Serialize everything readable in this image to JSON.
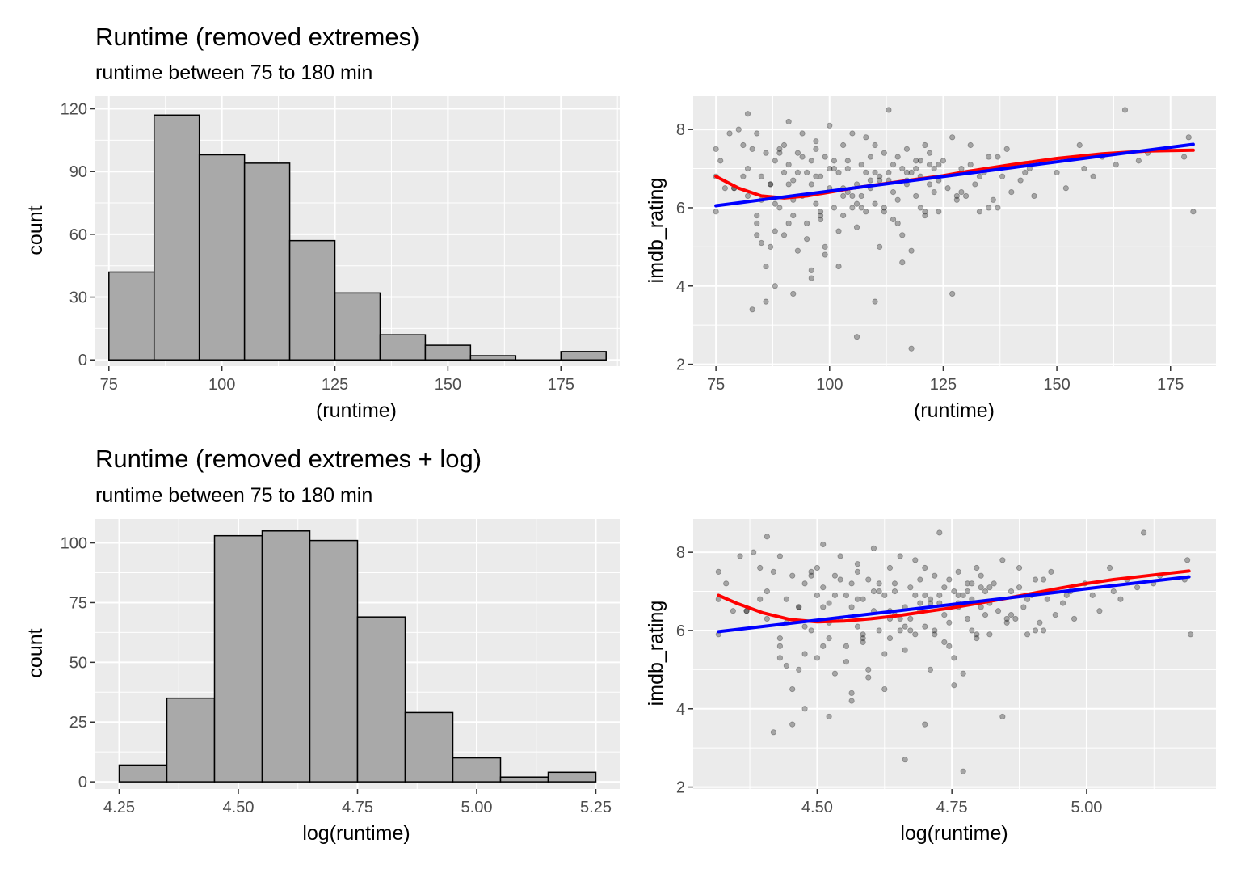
{
  "chart_data": [
    {
      "type": "bar",
      "title": "Runtime (removed extremes)",
      "subtitle": "runtime between 75 to 180 min",
      "xlabel": "(runtime)",
      "ylabel": "count",
      "xlim": [
        72,
        188
      ],
      "ylim": [
        -3,
        126
      ],
      "xticks": [
        75,
        100,
        125,
        150,
        175
      ],
      "xtick_labels": [
        "75",
        "100",
        "125",
        "150",
        "175"
      ],
      "yticks": [
        0,
        30,
        60,
        90,
        120
      ],
      "ytick_labels": [
        "0",
        "30",
        "60",
        "90",
        "120"
      ],
      "bin_edges": [
        75,
        85,
        95,
        105,
        115,
        125,
        135,
        145,
        155,
        165,
        175,
        185
      ],
      "values": [
        42,
        117,
        98,
        94,
        57,
        32,
        12,
        7,
        2,
        0,
        4
      ],
      "fill_color": "#a9a9a9",
      "grid": true
    },
    {
      "type": "scatter",
      "xlabel": "(runtime)",
      "ylabel": "imdb_rating",
      "xlim": [
        70,
        185
      ],
      "ylim": [
        1.95,
        8.85
      ],
      "xticks": [
        75,
        100,
        125,
        150,
        175
      ],
      "xtick_labels": [
        "75",
        "100",
        "125",
        "150",
        "175"
      ],
      "yticks": [
        2,
        4,
        6,
        8
      ],
      "ytick_labels": [
        "2",
        "4",
        "6",
        "8"
      ],
      "point_color": "#000000",
      "point_opacity": 0.3,
      "grid": true,
      "series": [
        {
          "kind": "points",
          "color": "#000000",
          "x": [
            75,
            75,
            75,
            76,
            78,
            79,
            80,
            81,
            82,
            82,
            83,
            84,
            84,
            85,
            85,
            86,
            86,
            87,
            87,
            88,
            88,
            89,
            89,
            90,
            90,
            91,
            91,
            92,
            92,
            93,
            93,
            94,
            94,
            95,
            95,
            96,
            96,
            97,
            97,
            98,
            98,
            99,
            99,
            100,
            100,
            101,
            101,
            102,
            102,
            103,
            103,
            104,
            104,
            105,
            105,
            106,
            106,
            107,
            107,
            108,
            108,
            109,
            109,
            110,
            110,
            111,
            111,
            112,
            112,
            113,
            113,
            114,
            114,
            115,
            115,
            116,
            116,
            117,
            117,
            118,
            118,
            119,
            119,
            120,
            120,
            121,
            121,
            122,
            122,
            123,
            123,
            124,
            124,
            125,
            126,
            127,
            128,
            129,
            130,
            131,
            132,
            133,
            134,
            135,
            136,
            137,
            138,
            139,
            140,
            142,
            144,
            145,
            148,
            150,
            152,
            155,
            158,
            160,
            163,
            165,
            170,
            178,
            179,
            180,
            83,
            86,
            88,
            92,
            96,
            99,
            102,
            106,
            110,
            116,
            118,
            127,
            79,
            84,
            88,
            91,
            95,
            98,
            103,
            107,
            112,
            85,
            90,
            94,
            100,
            108,
            114,
            120,
            81,
            87,
            93,
            97,
            104,
            111,
            117,
            122,
            129,
            133,
            77,
            82,
            89,
            96,
            101,
            105,
            109,
            113,
            119,
            124,
            131,
            137,
            143,
            156,
            168,
            84,
            92,
            98,
            106,
            115,
            121,
            128,
            135,
            91,
            97,
            103,
            110,
            117
          ],
          "y": [
            7.5,
            6.8,
            5.9,
            7.2,
            7.9,
            6.5,
            8.0,
            7.6,
            8.4,
            6.3,
            7.5,
            5.6,
            7.9,
            5.1,
            6.8,
            7.4,
            4.5,
            5.0,
            6.6,
            7.2,
            5.4,
            6.0,
            7.5,
            6.9,
            5.3,
            7.1,
            8.2,
            5.8,
            6.7,
            7.4,
            4.9,
            6.3,
            7.9,
            5.6,
            6.9,
            7.2,
            4.4,
            6.1,
            7.7,
            5.9,
            6.8,
            7.3,
            5.0,
            6.5,
            8.1,
            6.0,
            7.0,
            5.4,
            6.9,
            7.6,
            5.8,
            6.4,
            7.2,
            6.0,
            7.9,
            6.6,
            5.5,
            7.1,
            6.3,
            7.8,
            5.9,
            6.5,
            7.3,
            6.1,
            7.6,
            5.0,
            6.8,
            7.4,
            6.0,
            6.7,
            8.5,
            5.7,
            6.4,
            7.3,
            6.2,
            7.0,
            5.3,
            6.6,
            7.5,
            4.9,
            6.9,
            6.3,
            7.2,
            6.0,
            6.8,
            7.6,
            5.8,
            6.6,
            7.4,
            6.4,
            7.0,
            5.9,
            6.7,
            7.2,
            6.5,
            7.8,
            6.2,
            7.0,
            6.3,
            7.1,
            6.6,
            5.9,
            6.9,
            7.3,
            6.2,
            6.0,
            6.8,
            7.5,
            6.4,
            6.7,
            7.0,
            6.3,
            7.2,
            6.9,
            6.5,
            7.6,
            6.8,
            7.3,
            7.1,
            8.5,
            7.4,
            7.3,
            7.8,
            5.9,
            3.4,
            3.6,
            4.0,
            3.8,
            4.2,
            4.8,
            4.5,
            2.7,
            3.6,
            4.6,
            2.4,
            3.8,
            6.5,
            5.3,
            6.1,
            5.6,
            5.2,
            5.8,
            6.3,
            6.0,
            5.9,
            6.2,
            7.6,
            7.3,
            7.0,
            6.9,
            7.1,
            7.2,
            6.8,
            6.6,
            6.9,
            7.5,
            7.0,
            6.7,
            6.9,
            7.1,
            6.4,
            6.8,
            6.5,
            7.0,
            7.4,
            6.6,
            7.2,
            6.3,
            6.7,
            6.9,
            7.0,
            7.1,
            7.6,
            7.3,
            6.9,
            7.0,
            7.2,
            5.8,
            6.2,
            5.7,
            6.1,
            5.6,
            5.9,
            6.3,
            6.0,
            6.6,
            6.8,
            6.5,
            6.9,
            6.7
          ]
        },
        {
          "kind": "smooth-loess",
          "color": "#ff0000",
          "x": [
            75,
            80,
            85,
            90,
            95,
            100,
            105,
            110,
            115,
            120,
            125,
            130,
            140,
            150,
            160,
            170,
            180
          ],
          "y": [
            6.8,
            6.5,
            6.3,
            6.25,
            6.3,
            6.4,
            6.5,
            6.58,
            6.66,
            6.74,
            6.82,
            6.92,
            7.1,
            7.26,
            7.38,
            7.45,
            7.47
          ]
        },
        {
          "kind": "smooth-lm",
          "color": "#0000ff",
          "x": [
            75,
            180
          ],
          "y": [
            6.05,
            7.62
          ]
        }
      ]
    },
    {
      "type": "bar",
      "title": "Runtime (removed extremes + log)",
      "subtitle": "runtime between 75 to 180 min",
      "xlabel": "log(runtime)",
      "ylabel": "count",
      "xlim": [
        4.2,
        5.3
      ],
      "ylim": [
        -3,
        110
      ],
      "xticks": [
        4.25,
        4.5,
        4.75,
        5.0,
        5.25
      ],
      "xtick_labels": [
        "4.25",
        "4.50",
        "4.75",
        "5.00",
        "5.25"
      ],
      "yticks": [
        0,
        25,
        50,
        75,
        100
      ],
      "ytick_labels": [
        "0",
        "25",
        "50",
        "75",
        "100"
      ],
      "bin_edges": [
        4.25,
        4.35,
        4.45,
        4.55,
        4.65,
        4.75,
        4.85,
        4.95,
        5.05,
        5.15,
        5.25
      ],
      "values": [
        7,
        35,
        103,
        105,
        101,
        69,
        29,
        10,
        2,
        4
      ],
      "fill_color": "#a9a9a9",
      "grid": true
    },
    {
      "type": "scatter",
      "xlabel": "log(runtime)",
      "ylabel": "imdb_rating",
      "xlim": [
        4.27,
        5.24
      ],
      "ylim": [
        1.95,
        8.85
      ],
      "xticks": [
        4.5,
        4.75,
        5.0
      ],
      "xtick_labels": [
        "4.50",
        "4.75",
        "5.00"
      ],
      "yticks": [
        2,
        4,
        6,
        8
      ],
      "ytick_labels": [
        "2",
        "4",
        "6",
        "8"
      ],
      "point_color": "#000000",
      "point_opacity": 0.3,
      "grid": true,
      "series": [
        {
          "kind": "points",
          "color": "#000000",
          "x": [
            4.317,
            4.317,
            4.317,
            4.331,
            4.357,
            4.369,
            4.382,
            4.394,
            4.407,
            4.407,
            4.419,
            4.431,
            4.431,
            4.443,
            4.443,
            4.454,
            4.454,
            4.466,
            4.466,
            4.477,
            4.477,
            4.489,
            4.489,
            4.5,
            4.5,
            4.511,
            4.511,
            4.522,
            4.522,
            4.533,
            4.533,
            4.543,
            4.543,
            4.554,
            4.554,
            4.564,
            4.564,
            4.575,
            4.575,
            4.585,
            4.585,
            4.595,
            4.595,
            4.605,
            4.605,
            4.615,
            4.615,
            4.625,
            4.625,
            4.635,
            4.635,
            4.644,
            4.644,
            4.654,
            4.654,
            4.663,
            4.663,
            4.673,
            4.673,
            4.682,
            4.682,
            4.691,
            4.691,
            4.7,
            4.7,
            4.71,
            4.71,
            4.718,
            4.718,
            4.727,
            4.727,
            4.736,
            4.736,
            4.745,
            4.745,
            4.754,
            4.754,
            4.762,
            4.762,
            4.771,
            4.771,
            4.779,
            4.779,
            4.787,
            4.787,
            4.796,
            4.796,
            4.804,
            4.804,
            4.812,
            4.812,
            4.82,
            4.82,
            4.828,
            4.836,
            4.844,
            4.852,
            4.86,
            4.868,
            4.875,
            4.883,
            4.89,
            4.898,
            4.905,
            4.913,
            4.92,
            4.927,
            4.934,
            4.942,
            4.956,
            4.97,
            4.977,
            4.997,
            5.011,
            5.024,
            5.043,
            5.063,
            5.075,
            5.094,
            5.106,
            5.136,
            5.182,
            5.187,
            5.193,
            4.419,
            4.454,
            4.477,
            4.522,
            4.564,
            4.595,
            4.625,
            4.663,
            4.7,
            4.754,
            4.771,
            4.844,
            4.369,
            4.431,
            4.477,
            4.511,
            4.554,
            4.585,
            4.635,
            4.673,
            4.718,
            4.443,
            4.5,
            4.543,
            4.605,
            4.682,
            4.736,
            4.787,
            4.394,
            4.466,
            4.533,
            4.575,
            4.644,
            4.71,
            4.762,
            4.804,
            4.86,
            4.89,
            4.344,
            4.407,
            4.489,
            4.564,
            4.615,
            4.654,
            4.691,
            4.727,
            4.779,
            4.82,
            4.875,
            4.92,
            4.963,
            5.05,
            5.124,
            4.431,
            4.522,
            4.585,
            4.663,
            4.745,
            4.796,
            4.852,
            4.905,
            4.511,
            4.575,
            4.635,
            4.7,
            4.762
          ],
          "y": [
            7.5,
            6.8,
            5.9,
            7.2,
            7.9,
            6.5,
            8.0,
            7.6,
            8.4,
            6.3,
            7.5,
            5.6,
            7.9,
            5.1,
            6.8,
            7.4,
            4.5,
            5.0,
            6.6,
            7.2,
            5.4,
            6.0,
            7.5,
            6.9,
            5.3,
            7.1,
            8.2,
            5.8,
            6.7,
            7.4,
            4.9,
            6.3,
            7.9,
            5.6,
            6.9,
            7.2,
            4.4,
            6.1,
            7.7,
            5.9,
            6.8,
            7.3,
            5.0,
            6.5,
            8.1,
            6.0,
            7.0,
            5.4,
            6.9,
            7.6,
            5.8,
            6.4,
            7.2,
            6.0,
            7.9,
            6.6,
            5.5,
            7.1,
            6.3,
            7.8,
            5.9,
            6.5,
            7.3,
            6.1,
            7.6,
            5.0,
            6.8,
            7.4,
            6.0,
            6.7,
            8.5,
            5.7,
            6.4,
            7.3,
            6.2,
            7.0,
            5.3,
            6.6,
            7.5,
            4.9,
            6.9,
            6.3,
            7.2,
            6.0,
            6.8,
            7.6,
            5.8,
            6.6,
            7.4,
            6.4,
            7.0,
            5.9,
            6.7,
            7.2,
            6.5,
            7.8,
            6.2,
            7.0,
            6.3,
            7.1,
            6.6,
            5.9,
            6.9,
            7.3,
            6.2,
            6.0,
            6.8,
            7.5,
            6.4,
            6.7,
            7.0,
            6.3,
            7.2,
            6.9,
            6.5,
            7.6,
            6.8,
            7.3,
            7.1,
            8.5,
            7.4,
            7.3,
            7.8,
            5.9,
            3.4,
            3.6,
            4.0,
            3.8,
            4.2,
            4.8,
            4.5,
            2.7,
            3.6,
            4.6,
            2.4,
            3.8,
            6.5,
            5.3,
            6.1,
            5.6,
            5.2,
            5.8,
            6.3,
            6.0,
            5.9,
            6.2,
            7.6,
            7.3,
            7.0,
            6.9,
            7.1,
            7.2,
            6.8,
            6.6,
            6.9,
            7.5,
            7.0,
            6.7,
            6.9,
            7.1,
            6.4,
            6.8,
            6.5,
            7.0,
            7.4,
            6.6,
            7.2,
            6.3,
            6.7,
            6.9,
            7.0,
            7.1,
            7.6,
            7.3,
            6.9,
            7.0,
            7.2,
            5.8,
            6.2,
            5.7,
            6.1,
            5.6,
            5.9,
            6.3,
            6.0,
            6.6,
            6.8,
            6.5,
            6.9,
            6.7
          ]
        },
        {
          "kind": "smooth-loess",
          "color": "#ff0000",
          "x": [
            4.317,
            4.35,
            4.4,
            4.45,
            4.5,
            4.55,
            4.6,
            4.65,
            4.7,
            4.75,
            4.8,
            4.85,
            4.9,
            4.95,
            5.0,
            5.05,
            5.1,
            5.15,
            5.19
          ],
          "y": [
            6.9,
            6.7,
            6.45,
            6.28,
            6.22,
            6.24,
            6.3,
            6.38,
            6.48,
            6.58,
            6.7,
            6.82,
            6.95,
            7.08,
            7.2,
            7.3,
            7.38,
            7.46,
            7.52
          ]
        },
        {
          "kind": "smooth-lm",
          "color": "#0000ff",
          "x": [
            4.317,
            5.19
          ],
          "y": [
            5.97,
            7.37
          ]
        }
      ]
    }
  ]
}
